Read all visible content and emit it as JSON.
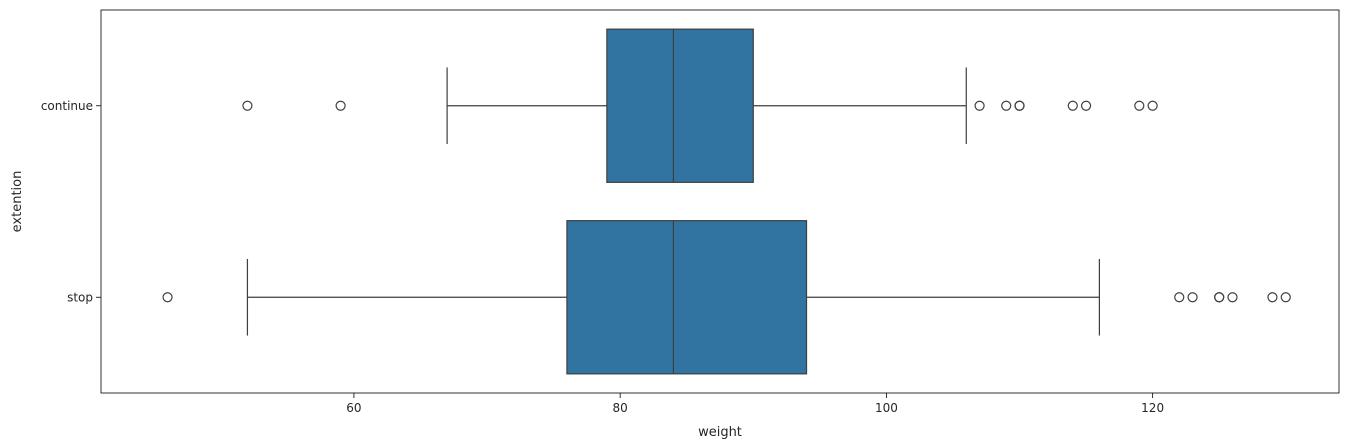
{
  "chart_data": {
    "type": "boxplot",
    "orientation": "horizontal",
    "xlabel": "weight",
    "ylabel": "extention",
    "xlim": [
      41,
      134
    ],
    "xticks": [
      60,
      80,
      100,
      120
    ],
    "xtick_labels": [
      "60",
      "80",
      "100",
      "120"
    ],
    "grid": false,
    "box_color": "#3274a1",
    "line_color": "#3f3f3f",
    "categories": [
      "continue",
      "stop"
    ],
    "boxes": [
      {
        "category": "continue",
        "whisker_low": 67,
        "q1": 79,
        "median": 84,
        "q3": 90,
        "whisker_high": 106,
        "outliers": [
          52,
          59,
          107,
          109,
          110,
          110,
          114,
          115,
          119,
          120
        ]
      },
      {
        "category": "stop",
        "whisker_low": 52,
        "q1": 76,
        "median": 84,
        "q3": 94,
        "whisker_high": 116,
        "outliers": [
          46,
          122,
          123,
          125,
          125,
          126,
          129,
          130
        ]
      }
    ]
  }
}
